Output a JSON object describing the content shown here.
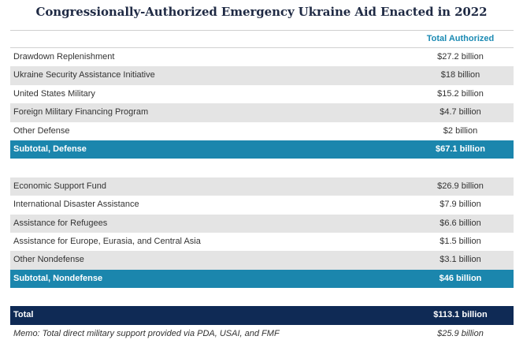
{
  "title": "Congressionally-Authorized Emergency Ukraine Aid Enacted in 2022",
  "column_header": "Total Authorized",
  "defense": {
    "rows": [
      {
        "label": "Drawdown Replenishment",
        "value": "$27.2 billion"
      },
      {
        "label": "Ukraine Security Assistance Initiative",
        "value": "$18 billion"
      },
      {
        "label": "United States Military",
        "value": "$15.2 billion"
      },
      {
        "label": "Foreign Military Financing Program",
        "value": "$4.7 billion"
      },
      {
        "label": "Other Defense",
        "value": "$2 billion"
      }
    ],
    "subtotal": {
      "label": "Subtotal, Defense",
      "value": "$67.1 billion"
    }
  },
  "nondefense": {
    "rows": [
      {
        "label": "Economic Support Fund",
        "value": "$26.9 billion"
      },
      {
        "label": "International Disaster Assistance",
        "value": "$7.9 billion"
      },
      {
        "label": "Assistance for Refugees",
        "value": "$6.6 billion"
      },
      {
        "label": "Assistance for Europe, Eurasia, and Central Asia",
        "value": "$1.5 billion"
      },
      {
        "label": "Other Nondefense",
        "value": "$3.1 billion"
      }
    ],
    "subtotal": {
      "label": "Subtotal, Nondefense",
      "value": "$46 billion"
    }
  },
  "total": {
    "label": "Total",
    "value": "$113.1 billion"
  },
  "memo": {
    "label": "Memo: Total direct military support provided via PDA, USAI, and FMF",
    "value": "$25.9 billion"
  },
  "colors": {
    "title": "#1f2a44",
    "header_text": "#1b8ab3",
    "subtotal_bg": "#1b86ad",
    "total_bg": "#0f2a55",
    "row_shade": "#e4e4e4"
  }
}
